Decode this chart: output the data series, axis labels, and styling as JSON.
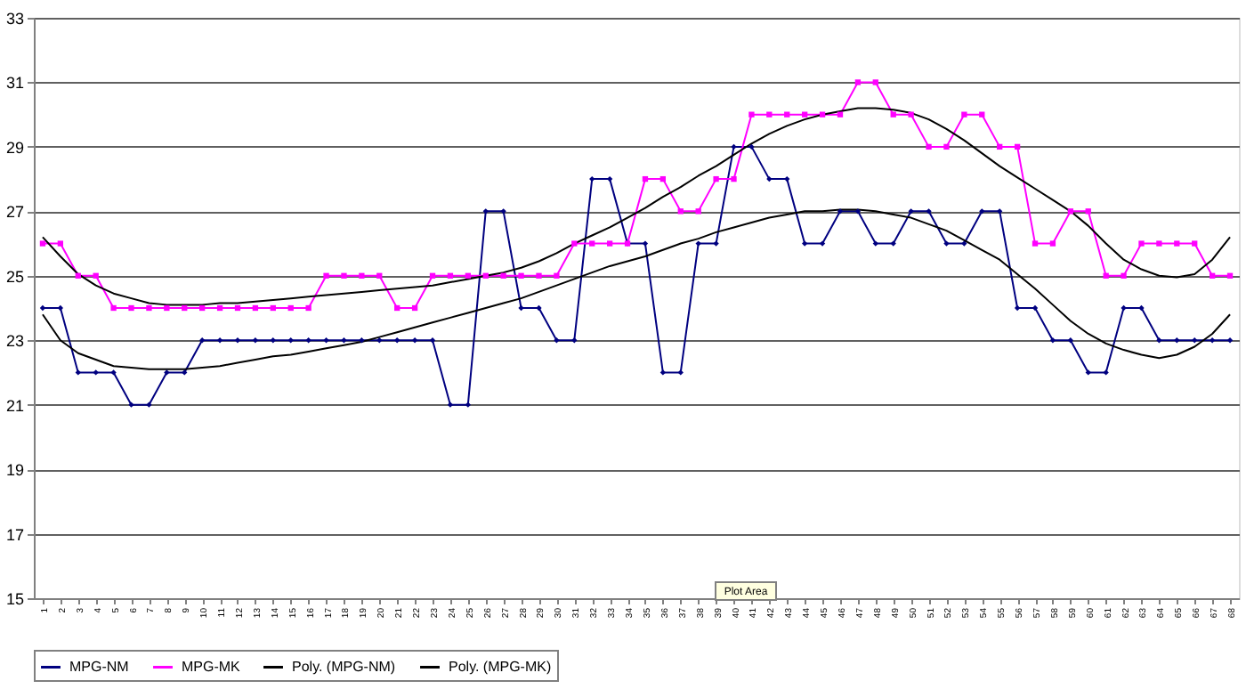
{
  "chart_data": {
    "type": "line",
    "categories": [
      "1",
      "2",
      "3",
      "4",
      "5",
      "6",
      "7",
      "8",
      "9",
      "10",
      "11",
      "12",
      "13",
      "14",
      "15",
      "16",
      "17",
      "18",
      "19",
      "20",
      "21",
      "22",
      "23",
      "24",
      "25",
      "26",
      "27",
      "28",
      "29",
      "30",
      "31",
      "32",
      "33",
      "34",
      "35",
      "36",
      "37",
      "38",
      "39",
      "40",
      "41",
      "42",
      "43",
      "44",
      "45",
      "46",
      "47",
      "48",
      "49",
      "50",
      "51",
      "52",
      "53",
      "54",
      "55",
      "56",
      "57",
      "58",
      "59",
      "60",
      "61",
      "62",
      "63",
      "64",
      "65",
      "66",
      "67",
      "68"
    ],
    "series": [
      {
        "name": "MPG-NM",
        "color": "#000080",
        "marker": "diamond",
        "values": [
          24,
          24,
          22,
          22,
          22,
          21,
          21,
          22,
          22,
          23,
          23,
          23,
          23,
          23,
          23,
          23,
          23,
          23,
          23,
          23,
          23,
          23,
          23,
          21,
          21,
          27,
          27,
          24,
          24,
          23,
          23,
          28,
          28,
          26,
          26,
          22,
          22,
          26,
          26,
          29,
          29,
          28,
          28,
          26,
          26,
          27,
          27,
          26,
          26,
          27,
          27,
          26,
          26,
          27,
          27,
          24,
          24,
          23,
          23,
          22,
          22,
          24,
          24,
          23,
          23,
          23,
          23,
          23
        ]
      },
      {
        "name": "MPG-MK",
        "color": "#ff00ff",
        "marker": "square",
        "values": [
          26,
          26,
          25,
          25,
          24,
          24,
          24,
          24,
          24,
          24,
          24,
          24,
          24,
          24,
          24,
          24,
          25,
          25,
          25,
          25,
          24,
          24,
          25,
          25,
          25,
          25,
          25,
          25,
          25,
          25,
          26,
          26,
          26,
          26,
          28,
          28,
          27,
          27,
          28,
          28,
          30,
          30,
          30,
          30,
          30,
          30,
          31,
          31,
          30,
          30,
          29,
          29,
          30,
          30,
          29,
          29,
          26,
          26,
          27,
          27,
          25,
          25,
          26,
          26,
          26,
          26,
          25,
          25
        ]
      },
      {
        "name": "Poly. (MPG-NM)",
        "color": "#000000",
        "marker": "none",
        "values": [
          23.8,
          23.0,
          22.6,
          22.4,
          22.2,
          22.15,
          22.1,
          22.1,
          22.1,
          22.15,
          22.2,
          22.3,
          22.4,
          22.5,
          22.55,
          22.65,
          22.75,
          22.85,
          22.95,
          23.1,
          23.25,
          23.4,
          23.55,
          23.7,
          23.85,
          24.0,
          24.15,
          24.3,
          24.5,
          24.7,
          24.9,
          25.1,
          25.3,
          25.45,
          25.6,
          25.8,
          26.0,
          26.15,
          26.35,
          26.5,
          26.65,
          26.8,
          26.9,
          27.0,
          27.0,
          27.05,
          27.05,
          27.0,
          26.9,
          26.8,
          26.6,
          26.4,
          26.1,
          25.8,
          25.5,
          25.05,
          24.6,
          24.1,
          23.6,
          23.2,
          22.9,
          22.7,
          22.55,
          22.45,
          22.55,
          22.8,
          23.2,
          23.8
        ]
      },
      {
        "name": "Poly. (MPG-MK)",
        "color": "#000000",
        "marker": "none",
        "values": [
          26.2,
          25.6,
          25.05,
          24.7,
          24.45,
          24.3,
          24.15,
          24.1,
          24.1,
          24.1,
          24.15,
          24.15,
          24.2,
          24.25,
          24.3,
          24.35,
          24.4,
          24.45,
          24.5,
          24.55,
          24.6,
          24.65,
          24.7,
          24.8,
          24.9,
          25.0,
          25.1,
          25.25,
          25.45,
          25.7,
          26.0,
          26.25,
          26.5,
          26.8,
          27.1,
          27.45,
          27.75,
          28.1,
          28.4,
          28.75,
          29.1,
          29.4,
          29.65,
          29.85,
          30.0,
          30.1,
          30.2,
          30.2,
          30.15,
          30.05,
          29.85,
          29.55,
          29.2,
          28.8,
          28.4,
          28.05,
          27.7,
          27.35,
          27.0,
          26.55,
          26.0,
          25.5,
          25.2,
          25.0,
          24.95,
          25.05,
          25.5,
          26.2
        ]
      }
    ],
    "ylim": [
      15,
      33
    ],
    "yticks": [
      15,
      17,
      19,
      21,
      23,
      25,
      27,
      29,
      31,
      33
    ],
    "grid": "y",
    "legend": "bottom",
    "line_style": "solid",
    "annotations": [
      "Plot Area"
    ]
  }
}
